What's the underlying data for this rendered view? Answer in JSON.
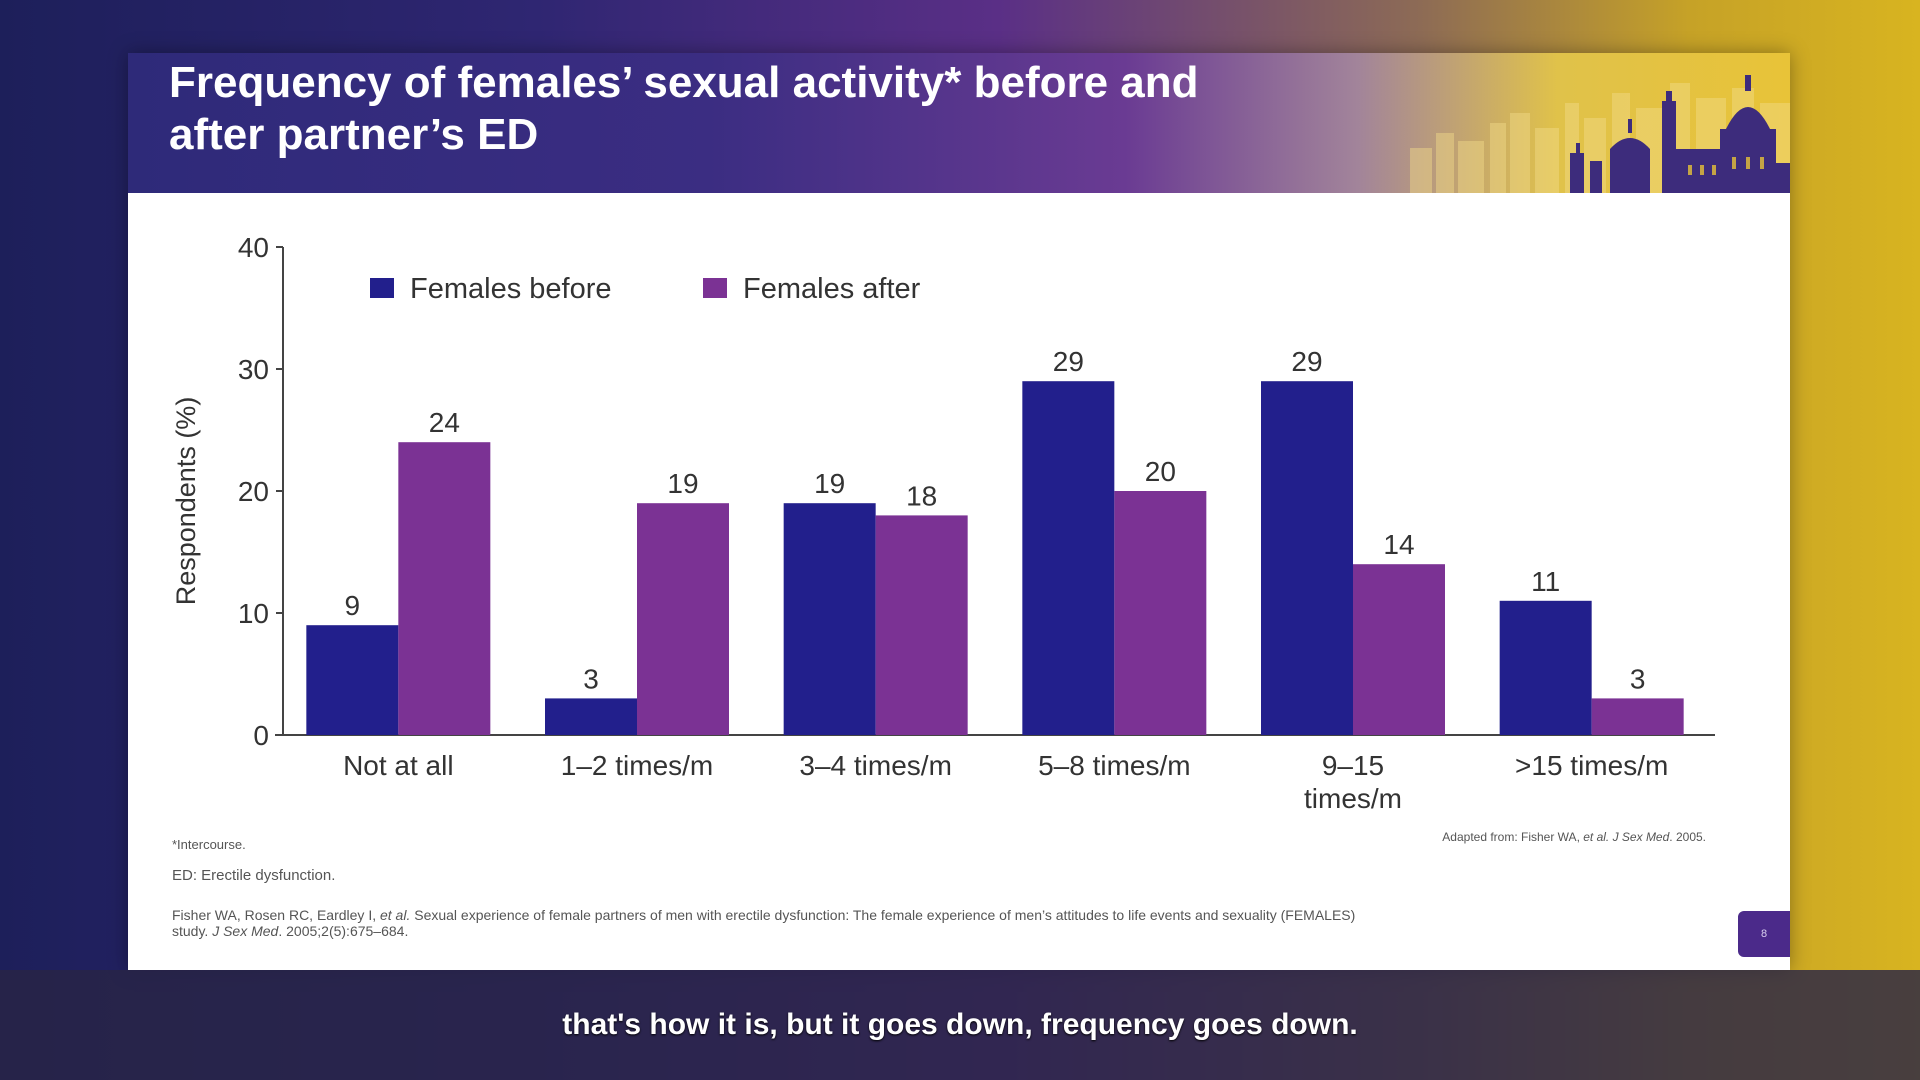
{
  "slide": {
    "title": "Frequency of females’ sexual activity* before and\nafter partner’s ED",
    "footnote": "*Intercourse.",
    "abbreviation": "ED: Erectile dysfunction.",
    "source_note_parts": [
      "Adapted from: Fisher WA, ",
      "et al.",
      " ",
      "J Sex Med",
      ". 2005."
    ],
    "reference_line1_parts": [
      "Fisher WA, Rosen RC, Eardley I, ",
      "et al.",
      " Sexual experience of female partners of men with erectile dysfunction: The female experience of men’s attitudes to life events and sexuality (FEMALES)"
    ],
    "reference_line2_parts": [
      "study. ",
      "J Sex Med",
      ". 2005;2(5):675–684."
    ],
    "page_number": "8",
    "header_colors": [
      "#2e2a79",
      "#6a3b93",
      "#e0c24a"
    ]
  },
  "subtitle": "that's how it is, but it goes down, frequency goes down.",
  "chart_data": {
    "type": "bar",
    "title": "",
    "xlabel": "",
    "ylabel": "Respondents (%)",
    "ylim": [
      0,
      40
    ],
    "yticks": [
      0,
      10,
      20,
      30,
      40
    ],
    "grid": false,
    "legend_position": "top-left",
    "categories": [
      [
        "Not at all"
      ],
      [
        "1–2 times/m"
      ],
      [
        "3–4 times/m"
      ],
      [
        "5–8 times/m"
      ],
      [
        "9–15",
        "times/m"
      ],
      [
        ">15 times/m"
      ]
    ],
    "series": [
      {
        "name": "Females before",
        "color": "#221f8c",
        "values": [
          9,
          3,
          19,
          29,
          29,
          11
        ]
      },
      {
        "name": "Females after",
        "color": "#7b3294",
        "values": [
          24,
          19,
          18,
          20,
          14,
          3
        ]
      }
    ]
  }
}
